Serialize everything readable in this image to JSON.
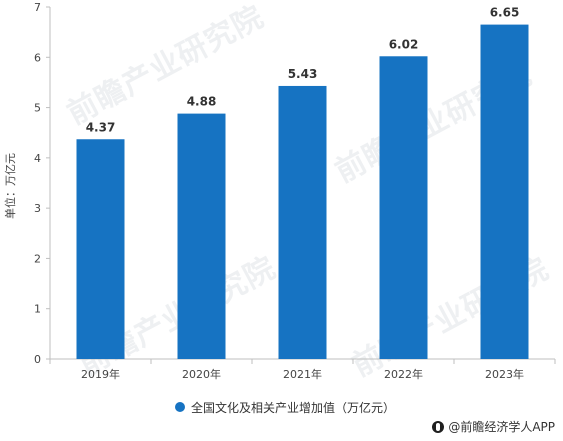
{
  "chart_data": {
    "type": "bar",
    "categories": [
      "2019年",
      "2020年",
      "2021年",
      "2022年",
      "2023年"
    ],
    "values": [
      4.37,
      4.88,
      5.43,
      6.02,
      6.65
    ],
    "data_labels": [
      "4.37",
      "4.88",
      "5.43",
      "6.02",
      "6.65"
    ],
    "ylabel": "单位：万亿元",
    "ylim": [
      0,
      7
    ],
    "yticks": [
      0,
      1,
      2,
      3,
      4,
      5,
      6,
      7
    ],
    "yticklabels": [
      "0",
      "1",
      "2",
      "3",
      "4",
      "5",
      "6",
      "7"
    ],
    "series": [
      {
        "name": "全国文化及相关产业增加值（万亿元）",
        "values": [
          4.37,
          4.88,
          5.43,
          6.02,
          6.65
        ]
      }
    ],
    "legend": "bottom",
    "grid": false,
    "bar_color": "#1673c2"
  },
  "legend": {
    "label": "全国文化及相关产业增加值（万亿元）"
  },
  "source": {
    "label": "@前瞻经济学人APP"
  },
  "watermark": {
    "text": "前瞻产业研究院"
  },
  "colors": {
    "bar": "#1673c2",
    "axis": "#bfbfbf",
    "text": "#333333",
    "label_text": "#333333"
  }
}
